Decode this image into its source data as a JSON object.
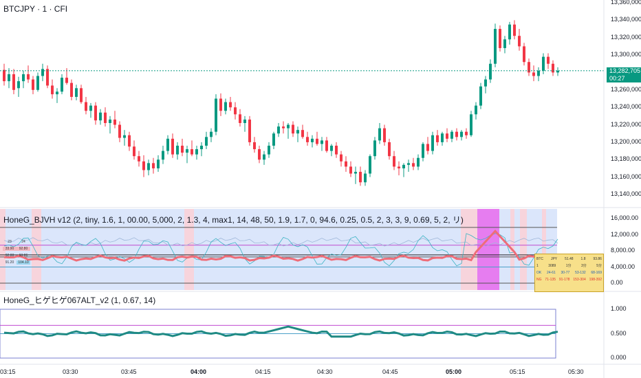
{
  "main": {
    "title": "BTCJPY · 1 · CFI",
    "last_price": "13,282,705",
    "countdown": "00:27",
    "price_axis": [
      "13,360,000",
      "13,340,000",
      "13,320,000",
      "13,300,000",
      "13,260,000",
      "13,240,000",
      "13,220,000",
      "13,200,000",
      "13,180,000",
      "13,160,000",
      "13,140,000"
    ],
    "candles": [
      [
        13283000,
        13290000,
        13265000,
        13270000
      ],
      [
        13270000,
        13285000,
        13262000,
        13278000
      ],
      [
        13278000,
        13284000,
        13255000,
        13260000
      ],
      [
        13262000,
        13275000,
        13252000,
        13270000
      ],
      [
        13270000,
        13282000,
        13262000,
        13278000
      ],
      [
        13278000,
        13288000,
        13268000,
        13272000
      ],
      [
        13272000,
        13276000,
        13255000,
        13260000
      ],
      [
        13260000,
        13280000,
        13258000,
        13276000
      ],
      [
        13276000,
        13290000,
        13270000,
        13284000
      ],
      [
        13284000,
        13288000,
        13262000,
        13265000
      ],
      [
        13265000,
        13272000,
        13250000,
        13255000
      ],
      [
        13255000,
        13262000,
        13245000,
        13258000
      ],
      [
        13258000,
        13278000,
        13255000,
        13274000
      ],
      [
        13274000,
        13285000,
        13266000,
        13268000
      ],
      [
        13268000,
        13272000,
        13248000,
        13252000
      ],
      [
        13252000,
        13266000,
        13248000,
        13262000
      ],
      [
        13262000,
        13266000,
        13244000,
        13246000
      ],
      [
        13246000,
        13252000,
        13232000,
        13236000
      ],
      [
        13236000,
        13245000,
        13228000,
        13242000
      ],
      [
        13242000,
        13246000,
        13220000,
        13225000
      ],
      [
        13225000,
        13238000,
        13220000,
        13234000
      ],
      [
        13234000,
        13240000,
        13218000,
        13222000
      ],
      [
        13222000,
        13230000,
        13210000,
        13226000
      ],
      [
        13226000,
        13236000,
        13216000,
        13220000
      ],
      [
        13220000,
        13224000,
        13200000,
        13205000
      ],
      [
        13205000,
        13214000,
        13196000,
        13208000
      ],
      [
        13208000,
        13212000,
        13190000,
        13195000
      ],
      [
        13195000,
        13202000,
        13180000,
        13184000
      ],
      [
        13184000,
        13190000,
        13172000,
        13178000
      ],
      [
        13178000,
        13185000,
        13160000,
        13168000
      ],
      [
        13168000,
        13180000,
        13162000,
        13176000
      ],
      [
        13176000,
        13182000,
        13164000,
        13170000
      ],
      [
        13170000,
        13185000,
        13166000,
        13180000
      ],
      [
        13180000,
        13196000,
        13175000,
        13190000
      ],
      [
        13190000,
        13208000,
        13186000,
        13204000
      ],
      [
        13204000,
        13210000,
        13182000,
        13186000
      ],
      [
        13186000,
        13200000,
        13180000,
        13196000
      ],
      [
        13196000,
        13204000,
        13184000,
        13188000
      ],
      [
        13188000,
        13196000,
        13176000,
        13192000
      ],
      [
        13192000,
        13202000,
        13184000,
        13186000
      ],
      [
        13186000,
        13196000,
        13180000,
        13192000
      ],
      [
        13192000,
        13200000,
        13184000,
        13196000
      ],
      [
        13196000,
        13212000,
        13192000,
        13206000
      ],
      [
        13206000,
        13216000,
        13200000,
        13212000
      ],
      [
        13212000,
        13255000,
        13208000,
        13250000
      ],
      [
        13250000,
        13256000,
        13230000,
        13236000
      ],
      [
        13236000,
        13250000,
        13232000,
        13246000
      ],
      [
        13246000,
        13252000,
        13236000,
        13240000
      ],
      [
        13240000,
        13246000,
        13226000,
        13232000
      ],
      [
        13232000,
        13238000,
        13218000,
        13222000
      ],
      [
        13222000,
        13230000,
        13212000,
        13226000
      ],
      [
        13226000,
        13230000,
        13196000,
        13200000
      ],
      [
        13200000,
        13206000,
        13188000,
        13192000
      ],
      [
        13192000,
        13196000,
        13176000,
        13180000
      ],
      [
        13180000,
        13190000,
        13174000,
        13186000
      ],
      [
        13186000,
        13200000,
        13182000,
        13196000
      ],
      [
        13196000,
        13212000,
        13192000,
        13210000
      ],
      [
        13210000,
        13222000,
        13206000,
        13218000
      ],
      [
        13218000,
        13224000,
        13210000,
        13216000
      ],
      [
        13216000,
        13222000,
        13204000,
        13220000
      ],
      [
        13220000,
        13224000,
        13206000,
        13210000
      ],
      [
        13210000,
        13218000,
        13200000,
        13214000
      ],
      [
        13214000,
        13220000,
        13204000,
        13206000
      ],
      [
        13206000,
        13212000,
        13196000,
        13200000
      ],
      [
        13200000,
        13208000,
        13194000,
        13204000
      ],
      [
        13204000,
        13212000,
        13196000,
        13198000
      ],
      [
        13198000,
        13206000,
        13190000,
        13202000
      ],
      [
        13202000,
        13206000,
        13188000,
        13190000
      ],
      [
        13190000,
        13198000,
        13184000,
        13196000
      ],
      [
        13196000,
        13200000,
        13182000,
        13186000
      ],
      [
        13186000,
        13190000,
        13172000,
        13178000
      ],
      [
        13178000,
        13184000,
        13166000,
        13172000
      ],
      [
        13172000,
        13178000,
        13160000,
        13164000
      ],
      [
        13164000,
        13172000,
        13152000,
        13166000
      ],
      [
        13166000,
        13172000,
        13150000,
        13154000
      ],
      [
        13154000,
        13168000,
        13150000,
        13164000
      ],
      [
        13164000,
        13186000,
        13160000,
        13184000
      ],
      [
        13184000,
        13206000,
        13180000,
        13202000
      ],
      [
        13202000,
        13222000,
        13198000,
        13216000
      ],
      [
        13216000,
        13220000,
        13196000,
        13200000
      ],
      [
        13200000,
        13204000,
        13180000,
        13184000
      ],
      [
        13184000,
        13190000,
        13168000,
        13172000
      ],
      [
        13172000,
        13178000,
        13162000,
        13170000
      ],
      [
        13170000,
        13176000,
        13160000,
        13174000
      ],
      [
        13174000,
        13180000,
        13166000,
        13176000
      ],
      [
        13176000,
        13182000,
        13168000,
        13172000
      ],
      [
        13172000,
        13186000,
        13168000,
        13182000
      ],
      [
        13182000,
        13200000,
        13178000,
        13198000
      ],
      [
        13198000,
        13206000,
        13186000,
        13190000
      ],
      [
        13190000,
        13212000,
        13186000,
        13208000
      ],
      [
        13208000,
        13214000,
        13196000,
        13200000
      ],
      [
        13200000,
        13212000,
        13196000,
        13210000
      ],
      [
        13210000,
        13216000,
        13200000,
        13204000
      ],
      [
        13204000,
        13214000,
        13200000,
        13212000
      ],
      [
        13212000,
        13216000,
        13202000,
        13206000
      ],
      [
        13206000,
        13214000,
        13202000,
        13212000
      ],
      [
        13212000,
        13216000,
        13204000,
        13208000
      ],
      [
        13208000,
        13236000,
        13206000,
        13232000
      ],
      [
        13232000,
        13246000,
        13226000,
        13242000
      ],
      [
        13242000,
        13268000,
        13238000,
        13264000
      ],
      [
        13264000,
        13276000,
        13256000,
        13272000
      ],
      [
        13272000,
        13295000,
        13268000,
        13290000
      ],
      [
        13290000,
        13336000,
        13286000,
        13330000
      ],
      [
        13330000,
        13334000,
        13304000,
        13308000
      ],
      [
        13308000,
        13322000,
        13302000,
        13318000
      ],
      [
        13318000,
        13338000,
        13312000,
        13335000
      ],
      [
        13335000,
        13340000,
        13318000,
        13322000
      ],
      [
        13322000,
        13330000,
        13305000,
        13310000
      ],
      [
        13310000,
        13314000,
        13288000,
        13292000
      ],
      [
        13292000,
        13296000,
        13276000,
        13280000
      ],
      [
        13280000,
        13288000,
        13270000,
        13276000
      ],
      [
        13276000,
        13286000,
        13270000,
        13282000
      ],
      [
        13282000,
        13302000,
        13278000,
        13298000
      ],
      [
        13298000,
        13302000,
        13284000,
        13290000
      ],
      [
        13290000,
        13294000,
        13276000,
        13280000
      ],
      [
        13280000,
        13286000,
        13276000,
        13282000
      ]
    ]
  },
  "ind1": {
    "title": "HoneG_BJVH v12 (2, tiny, 1.6, 1, 00.00, 5,000, 2, 1.3, 4, max1, 14, 48, 50, 1.9, 1.7, 0, 94.6, 0.25, 0.5, 2, 3, 3, 9, 0.69, 5, 2, リ)",
    "axis": [
      "16,000.00",
      "12,000.00",
      "8,000.00",
      "4,000.00",
      "0.00"
    ],
    "left_table": [
      [
        "23",
        "24"
      ],
      [
        "33.90",
        "92.80"
      ],
      [
        "92.88",
        "93.86"
      ],
      [
        "91.20",
        "104.10"
      ]
    ],
    "table": {
      "header": [
        "BTC",
        "JPY",
        "51.48",
        "1.8",
        "93.86"
      ],
      "row1": [
        "1",
        "3089",
        "1分",
        "3分",
        "5分"
      ],
      "row2": [
        "OK",
        "24-61",
        "30-77",
        "53-132",
        "68-169"
      ],
      "row3": [
        "NG",
        "71-135",
        "91-178",
        "153-304",
        "198-392"
      ]
    }
  },
  "ind2": {
    "title": "HoneG_ヒゲヒゲ067ALT_v2 (1, 0.67, 14)",
    "axis": [
      "1.000",
      "0.500",
      "0.000"
    ]
  },
  "time_axis": {
    "labels": [
      "03:15",
      "03:30",
      "03:45",
      "04:00",
      "04:15",
      "04:30",
      "04:45",
      "05:00",
      "05:15",
      "05:30"
    ],
    "bold": [
      "04:00",
      "05:00"
    ]
  },
  "colors": {
    "up": "#089981",
    "down": "#f23645",
    "band_blue": "#dbe6fb",
    "band_pink": "#fbd0d6",
    "band_magenta": "#e67df0",
    "thick_line": "#ee6d79",
    "osc_line": "#1f8a84",
    "last_price_line": "#089981"
  }
}
